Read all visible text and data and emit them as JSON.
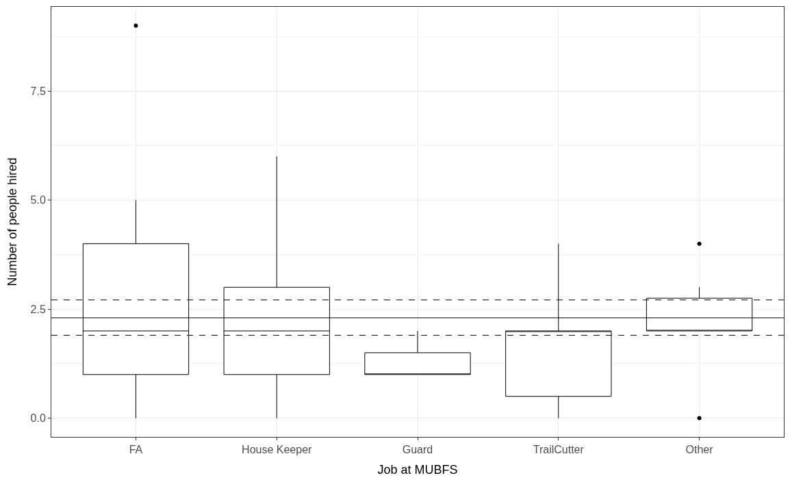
{
  "chart_data": {
    "type": "box",
    "xlabel": "Job at MUBFS",
    "ylabel": "Number of people hired",
    "categories": [
      "FA",
      "House Keeper",
      "Guard",
      "TrailCutter",
      "Other"
    ],
    "boxes": [
      {
        "low": 0,
        "q1": 1,
        "median": 2,
        "q3": 4,
        "high": 5,
        "outliers": [
          9
        ]
      },
      {
        "low": 0,
        "q1": 1,
        "median": 2,
        "q3": 3,
        "high": 6
      },
      {
        "low": 1,
        "q1": 1,
        "median": 1,
        "q3": 1.5,
        "high": 2
      },
      {
        "low": 0,
        "q1": 0.5,
        "median": 2,
        "q3": 2,
        "high": 4
      },
      {
        "low": 2,
        "q1": 2,
        "median": 2,
        "q3": 2.75,
        "high": 3,
        "outliers": [
          4,
          0
        ]
      }
    ],
    "color": "#000000",
    "ylim": [
      -0.43,
      9.43
    ],
    "yticks": [
      {
        "value": 0,
        "label": "0.0"
      },
      {
        "value": 2.5,
        "label": "2.5"
      },
      {
        "value": 5,
        "label": "5.0"
      },
      {
        "value": 7.5,
        "label": "7.5"
      }
    ],
    "ref_lines": [
      {
        "axis": "y",
        "value": 2.3,
        "line_style": "solid",
        "color": "#000000"
      },
      {
        "axis": "y",
        "value": 2.71,
        "line_style": "dashed",
        "color": "#000000"
      },
      {
        "axis": "y",
        "value": 1.9,
        "line_style": "dashed",
        "color": "#000000"
      }
    ],
    "grid": true
  }
}
